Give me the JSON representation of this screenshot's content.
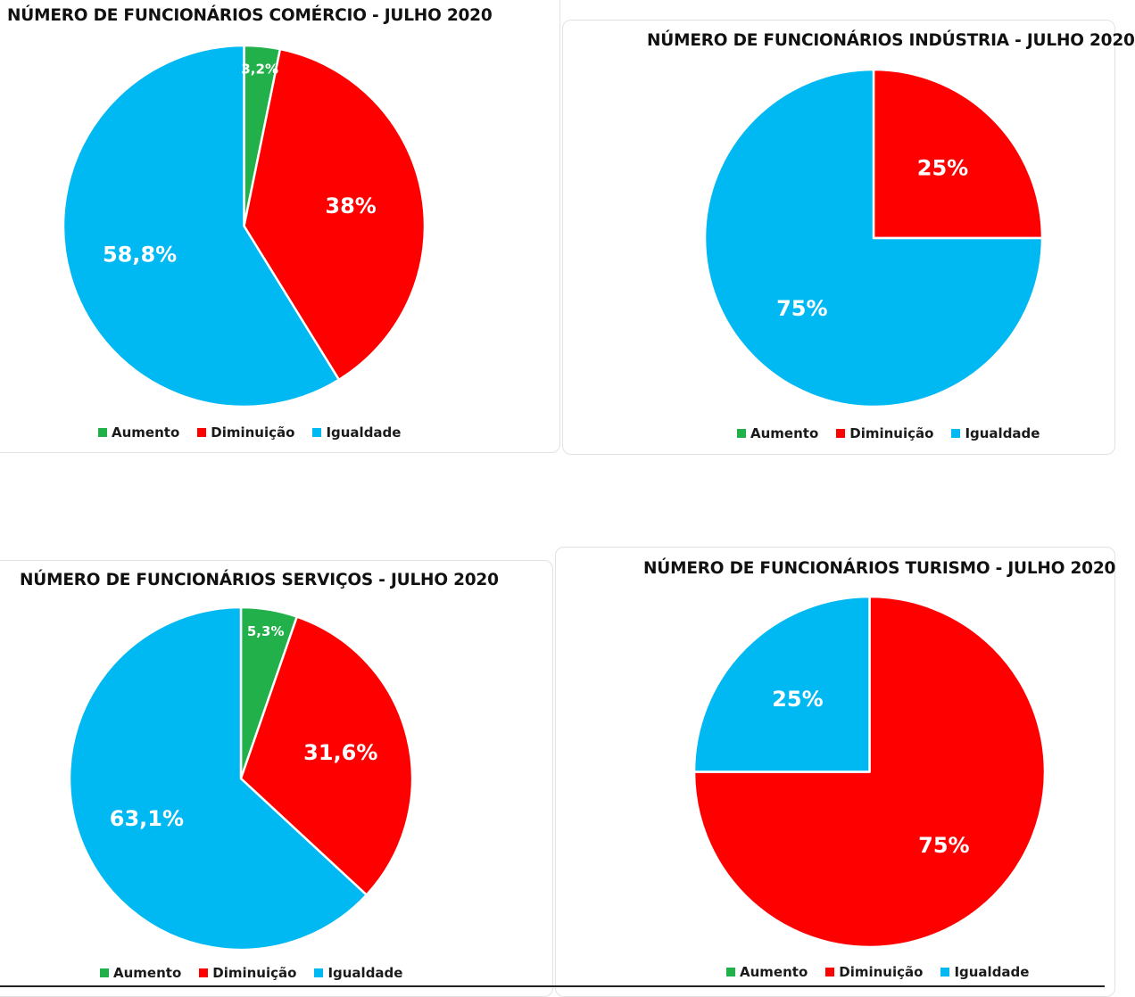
{
  "chart_data": [
    {
      "type": "pie",
      "title": "NÚMERO  DE FUNCIONÁRIOS  COMÉRCIO - JULHO 2020",
      "categories": [
        "Aumento",
        "Diminuição",
        "Igualdade"
      ],
      "values": [
        3.2,
        38.0,
        58.8
      ],
      "data_labels": [
        "3,2%",
        "38%",
        "58,8%"
      ],
      "colors": [
        "#22b04a",
        "#ff0000",
        "#00b8f2"
      ],
      "legend": "bottom"
    },
    {
      "type": "pie",
      "title": "NÚMERO  DE FUNCIONÁRIOS  INDÚSTRIA   - JULHO 2020",
      "categories": [
        "Aumento",
        "Diminuição",
        "Igualdade"
      ],
      "values": [
        0,
        25,
        75
      ],
      "data_labels": [
        "",
        "25%",
        "75%"
      ],
      "colors": [
        "#22b04a",
        "#ff0000",
        "#00b8f2"
      ],
      "legend": "bottom"
    },
    {
      "type": "pie",
      "title": "NÚMERO  DE FUNCIONÁRIOS  SERVIÇOS - JULHO 2020",
      "categories": [
        "Aumento",
        "Diminuição",
        "Igualdade"
      ],
      "values": [
        5.3,
        31.6,
        63.1
      ],
      "data_labels": [
        "5,3%",
        "31,6%",
        "63,1%"
      ],
      "colors": [
        "#22b04a",
        "#ff0000",
        "#00b8f2"
      ],
      "legend": "bottom"
    },
    {
      "type": "pie",
      "title": "NÚMERO  DE FUNCIONÁRIOS  TURISMO - JULHO 2020",
      "categories": [
        "Aumento",
        "Diminuição",
        "Igualdade"
      ],
      "values": [
        0,
        75,
        25
      ],
      "data_labels": [
        "",
        "75%",
        "25%"
      ],
      "colors": [
        "#22b04a",
        "#ff0000",
        "#00b8f2"
      ],
      "legend": "bottom"
    }
  ]
}
